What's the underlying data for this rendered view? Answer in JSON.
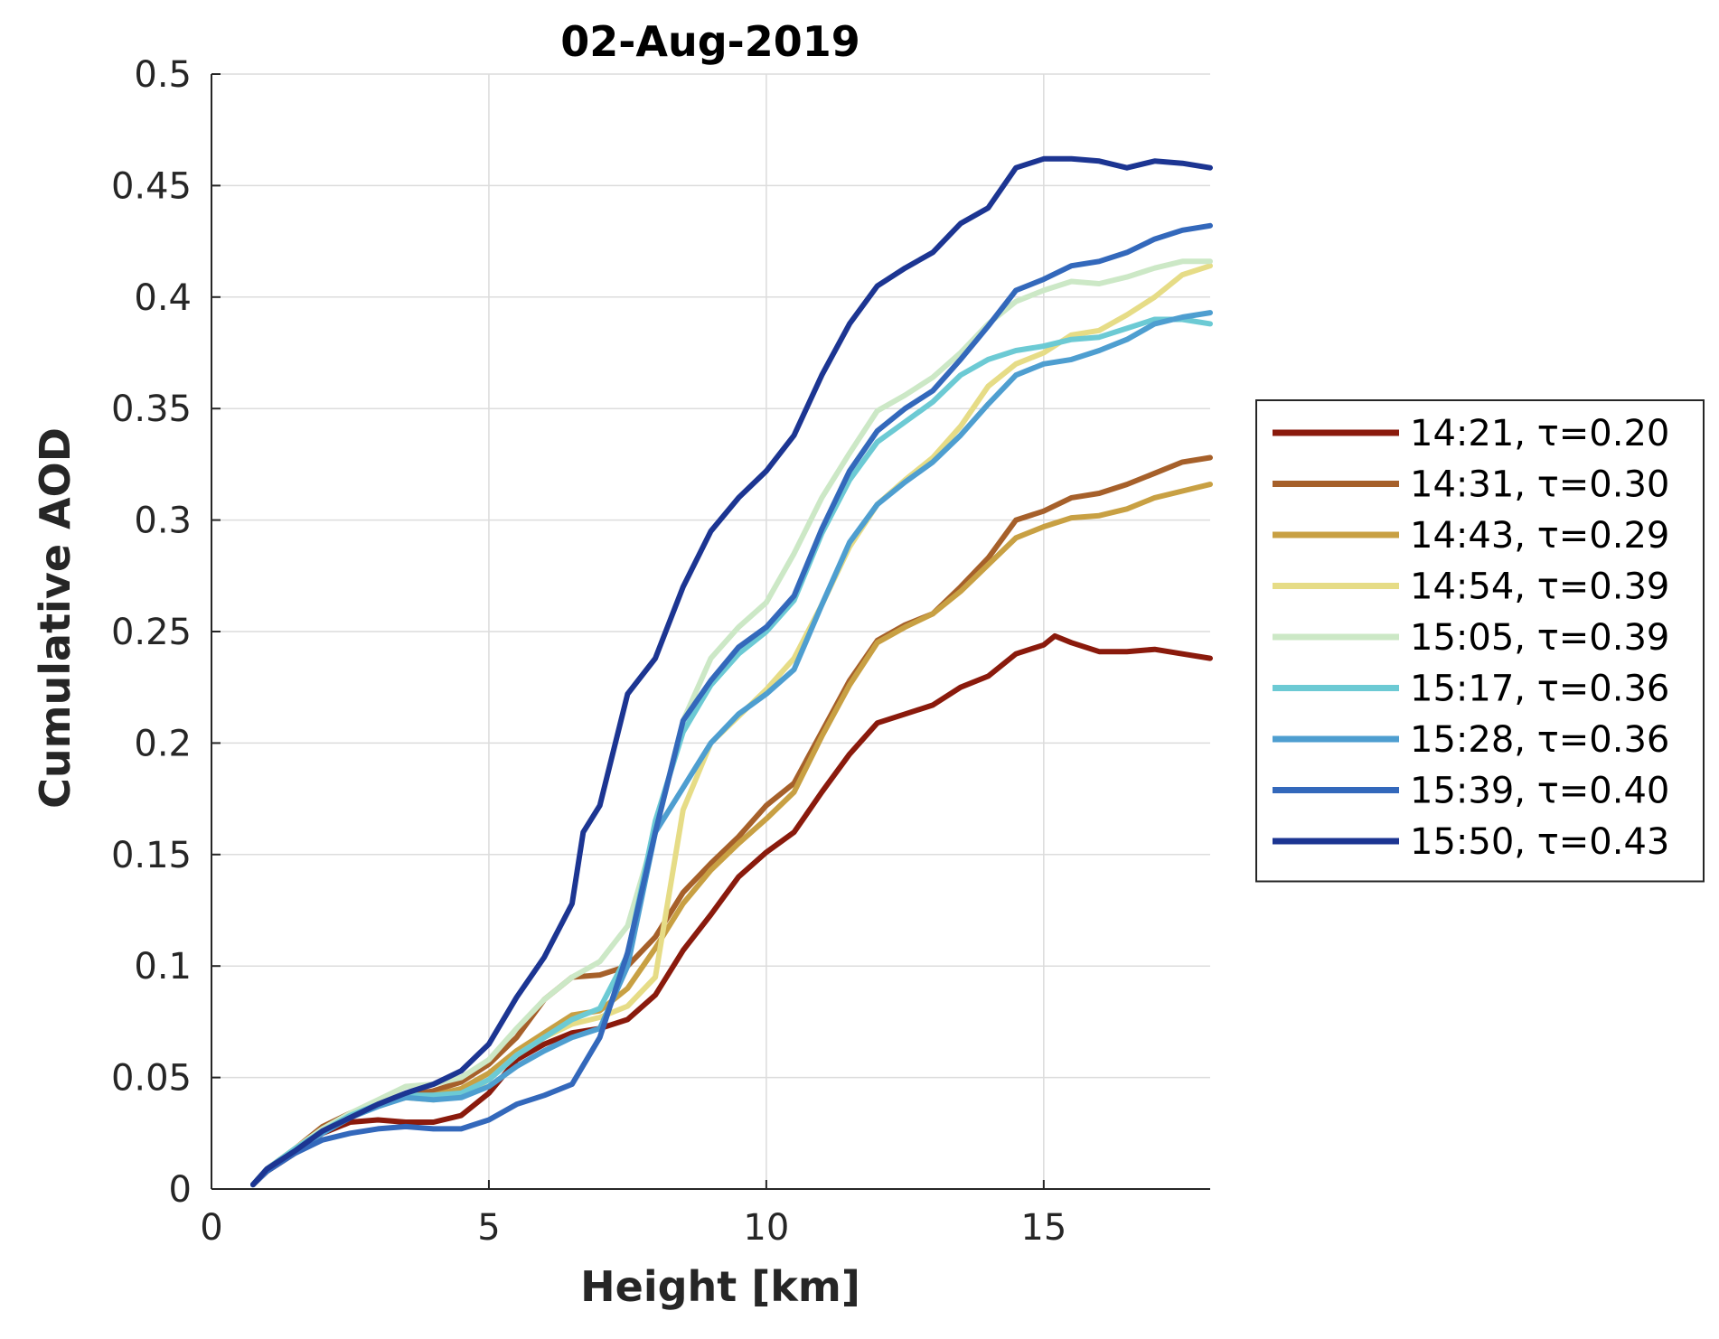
{
  "chart_data": {
    "type": "line",
    "title": "02-Aug-2019",
    "xlabel": "Height [km]",
    "ylabel": "Cumulative AOD",
    "xlim": [
      0,
      18
    ],
    "ylim": [
      0,
      0.5
    ],
    "xticks": [
      0,
      5,
      10,
      15
    ],
    "xtick_labels": [
      "0",
      "5",
      "10",
      "15"
    ],
    "yticks": [
      0,
      0.05,
      0.1,
      0.15,
      0.2,
      0.25,
      0.3,
      0.35,
      0.4,
      0.45,
      0.5
    ],
    "ytick_labels": [
      "0",
      "0.05",
      "0.1",
      "0.15",
      "0.2",
      "0.25",
      "0.3",
      "0.35",
      "0.4",
      "0.45",
      "0.5"
    ],
    "grid": true,
    "legend_position": "right",
    "series": [
      {
        "name": "14:21, τ=0.20",
        "color": "#8a1a0c",
        "x": [
          0.75,
          1,
          1.5,
          2,
          2.5,
          3,
          3.5,
          4,
          4.5,
          5,
          5.5,
          6,
          6.5,
          7,
          7.5,
          8,
          8.5,
          9,
          9.5,
          10,
          10.5,
          11,
          11.5,
          12,
          12.5,
          13,
          13.5,
          14,
          14.5,
          15,
          15.2,
          15.5,
          16,
          16.5,
          17,
          17.5,
          18
        ],
        "y": [
          0.002,
          0.008,
          0.016,
          0.025,
          0.03,
          0.031,
          0.03,
          0.03,
          0.033,
          0.043,
          0.058,
          0.065,
          0.07,
          0.072,
          0.076,
          0.087,
          0.107,
          0.123,
          0.14,
          0.151,
          0.16,
          0.178,
          0.195,
          0.209,
          0.213,
          0.217,
          0.225,
          0.23,
          0.24,
          0.244,
          0.248,
          0.245,
          0.241,
          0.241,
          0.242,
          0.24,
          0.238
        ]
      },
      {
        "name": "14:31, τ=0.30",
        "color": "#a6602a",
        "x": [
          0.75,
          1,
          1.5,
          2,
          2.5,
          3,
          3.5,
          4,
          4.5,
          5,
          5.5,
          6,
          6.5,
          7,
          7.5,
          8,
          8.5,
          9,
          9.5,
          10,
          10.5,
          11,
          11.5,
          12,
          12.5,
          13,
          13.5,
          14,
          14.5,
          15,
          15.5,
          16,
          16.5,
          17,
          17.5,
          18
        ],
        "y": [
          0.002,
          0.009,
          0.018,
          0.028,
          0.034,
          0.039,
          0.042,
          0.044,
          0.048,
          0.056,
          0.068,
          0.085,
          0.095,
          0.096,
          0.1,
          0.113,
          0.133,
          0.146,
          0.158,
          0.172,
          0.182,
          0.205,
          0.228,
          0.246,
          0.253,
          0.258,
          0.27,
          0.283,
          0.3,
          0.304,
          0.31,
          0.312,
          0.316,
          0.321,
          0.326,
          0.328
        ]
      },
      {
        "name": "14:43, τ=0.29",
        "color": "#c8a043",
        "x": [
          0.75,
          1,
          1.5,
          2,
          2.5,
          3,
          3.5,
          4,
          4.5,
          5,
          5.5,
          6,
          6.5,
          7,
          7.5,
          8,
          8.5,
          9,
          9.5,
          10,
          10.5,
          11,
          11.5,
          12,
          12.5,
          13,
          13.5,
          14,
          14.5,
          15,
          15.5,
          16,
          16.5,
          17,
          17.5,
          18
        ],
        "y": [
          0.002,
          0.009,
          0.018,
          0.027,
          0.033,
          0.038,
          0.041,
          0.042,
          0.045,
          0.052,
          0.062,
          0.07,
          0.078,
          0.08,
          0.09,
          0.108,
          0.128,
          0.143,
          0.155,
          0.166,
          0.178,
          0.203,
          0.226,
          0.245,
          0.252,
          0.258,
          0.268,
          0.28,
          0.292,
          0.297,
          0.301,
          0.302,
          0.305,
          0.31,
          0.313,
          0.316
        ]
      },
      {
        "name": "14:54, τ=0.39",
        "color": "#e6dc86",
        "x": [
          0.75,
          1,
          1.5,
          2,
          2.5,
          3,
          3.5,
          4,
          4.5,
          5,
          5.5,
          6,
          6.5,
          7,
          7.5,
          8,
          8.5,
          9,
          9.5,
          10,
          10.5,
          11,
          11.5,
          12,
          12.5,
          13,
          13.5,
          14,
          14.5,
          15,
          15.5,
          16,
          16.5,
          17,
          17.5,
          18
        ],
        "y": [
          0.002,
          0.009,
          0.018,
          0.027,
          0.033,
          0.038,
          0.041,
          0.04,
          0.042,
          0.049,
          0.06,
          0.068,
          0.074,
          0.077,
          0.082,
          0.095,
          0.17,
          0.2,
          0.212,
          0.224,
          0.238,
          0.262,
          0.288,
          0.307,
          0.318,
          0.328,
          0.342,
          0.36,
          0.37,
          0.375,
          0.383,
          0.385,
          0.392,
          0.4,
          0.41,
          0.414
        ]
      },
      {
        "name": "15:05, τ=0.39",
        "color": "#cce8c6",
        "x": [
          0.75,
          1,
          1.5,
          2,
          2.5,
          3,
          3.5,
          4,
          4.5,
          5,
          5.5,
          6,
          6.5,
          7,
          7.5,
          8,
          8.5,
          9,
          9.5,
          10,
          10.5,
          11,
          11.5,
          12,
          12.5,
          13,
          13.5,
          14,
          14.5,
          15,
          15.5,
          16,
          16.5,
          17,
          17.5,
          18
        ],
        "y": [
          0.002,
          0.009,
          0.018,
          0.027,
          0.034,
          0.04,
          0.046,
          0.047,
          0.05,
          0.058,
          0.072,
          0.085,
          0.095,
          0.102,
          0.118,
          0.16,
          0.21,
          0.238,
          0.252,
          0.263,
          0.285,
          0.31,
          0.33,
          0.349,
          0.356,
          0.364,
          0.375,
          0.388,
          0.398,
          0.403,
          0.407,
          0.406,
          0.409,
          0.413,
          0.416,
          0.416
        ]
      },
      {
        "name": "15:17, τ=0.36",
        "color": "#6ccad4",
        "x": [
          0.75,
          1,
          1.5,
          2,
          2.5,
          3,
          3.5,
          4,
          4.5,
          5,
          5.5,
          6,
          6.5,
          7,
          7.5,
          8,
          8.5,
          9,
          9.5,
          10,
          10.5,
          11,
          11.5,
          12,
          12.5,
          13,
          13.5,
          14,
          14.5,
          15,
          15.5,
          16,
          16.5,
          17,
          17.5,
          18
        ],
        "y": [
          0.002,
          0.009,
          0.018,
          0.026,
          0.033,
          0.038,
          0.042,
          0.042,
          0.043,
          0.049,
          0.06,
          0.068,
          0.076,
          0.081,
          0.105,
          0.165,
          0.205,
          0.226,
          0.24,
          0.25,
          0.264,
          0.294,
          0.318,
          0.335,
          0.344,
          0.353,
          0.365,
          0.372,
          0.376,
          0.378,
          0.381,
          0.382,
          0.386,
          0.39,
          0.39,
          0.388
        ]
      },
      {
        "name": "15:28, τ=0.36",
        "color": "#4e9ed0",
        "x": [
          0.75,
          1,
          1.5,
          2,
          2.5,
          3,
          3.5,
          4,
          4.5,
          5,
          5.5,
          6,
          6.5,
          7,
          7.5,
          8,
          8.5,
          9,
          9.5,
          10,
          10.5,
          11,
          11.5,
          12,
          12.5,
          13,
          13.5,
          14,
          14.5,
          15,
          15.5,
          16,
          16.5,
          17,
          17.5,
          18
        ],
        "y": [
          0.002,
          0.009,
          0.017,
          0.025,
          0.032,
          0.037,
          0.041,
          0.04,
          0.041,
          0.046,
          0.055,
          0.062,
          0.068,
          0.072,
          0.1,
          0.16,
          0.18,
          0.2,
          0.213,
          0.222,
          0.233,
          0.262,
          0.29,
          0.307,
          0.317,
          0.326,
          0.338,
          0.352,
          0.365,
          0.37,
          0.372,
          0.376,
          0.381,
          0.388,
          0.391,
          0.393
        ]
      },
      {
        "name": "15:39, τ=0.40",
        "color": "#3368bb",
        "x": [
          0.75,
          1,
          1.5,
          2,
          2.5,
          3,
          3.5,
          4,
          4.5,
          5,
          5.5,
          6,
          6.5,
          7,
          7.5,
          8,
          8.5,
          9,
          9.5,
          10,
          10.5,
          11,
          11.5,
          12,
          12.5,
          13,
          13.5,
          14,
          14.5,
          15,
          15.5,
          16,
          16.5,
          17,
          17.5,
          18
        ],
        "y": [
          0.002,
          0.008,
          0.016,
          0.022,
          0.025,
          0.027,
          0.028,
          0.027,
          0.027,
          0.031,
          0.038,
          0.042,
          0.047,
          0.068,
          0.106,
          0.16,
          0.21,
          0.228,
          0.243,
          0.252,
          0.266,
          0.296,
          0.322,
          0.34,
          0.35,
          0.358,
          0.372,
          0.387,
          0.403,
          0.408,
          0.414,
          0.416,
          0.42,
          0.426,
          0.43,
          0.432
        ]
      },
      {
        "name": "15:50, τ=0.43",
        "color": "#1c3592",
        "x": [
          0.75,
          1,
          1.5,
          2,
          2.5,
          3,
          3.5,
          4,
          4.5,
          5,
          5.5,
          6,
          6.5,
          6.7,
          7,
          7.5,
          8,
          8.5,
          9,
          9.5,
          10,
          10.5,
          11,
          11.5,
          12,
          12.5,
          13,
          13.5,
          14,
          14.5,
          15,
          15.5,
          16,
          16.5,
          17,
          17.5,
          18
        ],
        "y": [
          0.002,
          0.009,
          0.017,
          0.026,
          0.032,
          0.038,
          0.043,
          0.047,
          0.053,
          0.065,
          0.086,
          0.104,
          0.128,
          0.16,
          0.172,
          0.222,
          0.238,
          0.27,
          0.295,
          0.31,
          0.322,
          0.338,
          0.365,
          0.388,
          0.405,
          0.413,
          0.42,
          0.433,
          0.44,
          0.458,
          0.462,
          0.462,
          0.461,
          0.458,
          0.461,
          0.46,
          0.458
        ]
      }
    ]
  }
}
